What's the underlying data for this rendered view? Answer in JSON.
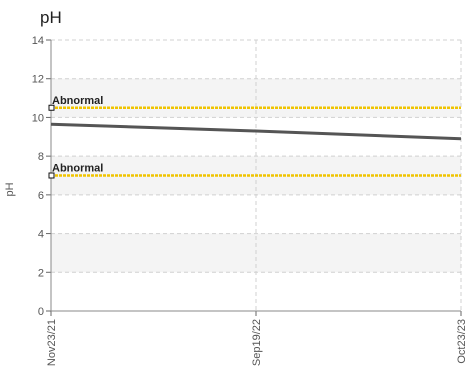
{
  "chart_data": {
    "type": "line",
    "title": "pH",
    "ylabel": "pH",
    "xlabel": "",
    "ylim": [
      0,
      14
    ],
    "yticks": [
      0,
      2,
      4,
      6,
      8,
      10,
      12,
      14
    ],
    "grid": true,
    "x": [
      "Nov23/21",
      "Sep19/22",
      "Oct23/23"
    ],
    "series": [
      {
        "values": [
          9.65,
          9.3,
          8.9
        ],
        "color": "#555555"
      }
    ],
    "reference_lines": [
      {
        "label": "Abnormal",
        "value": 10.5,
        "color": "#f0c400"
      },
      {
        "label": "Abnormal",
        "value": 7.0,
        "color": "#f0c400"
      }
    ],
    "bands": [
      {
        "from": 10,
        "to": 12,
        "fill": "#f4f4f4"
      },
      {
        "from": 6,
        "to": 8,
        "fill": "#f4f4f4"
      },
      {
        "from": 2,
        "to": 4,
        "fill": "#f4f4f4"
      }
    ]
  }
}
